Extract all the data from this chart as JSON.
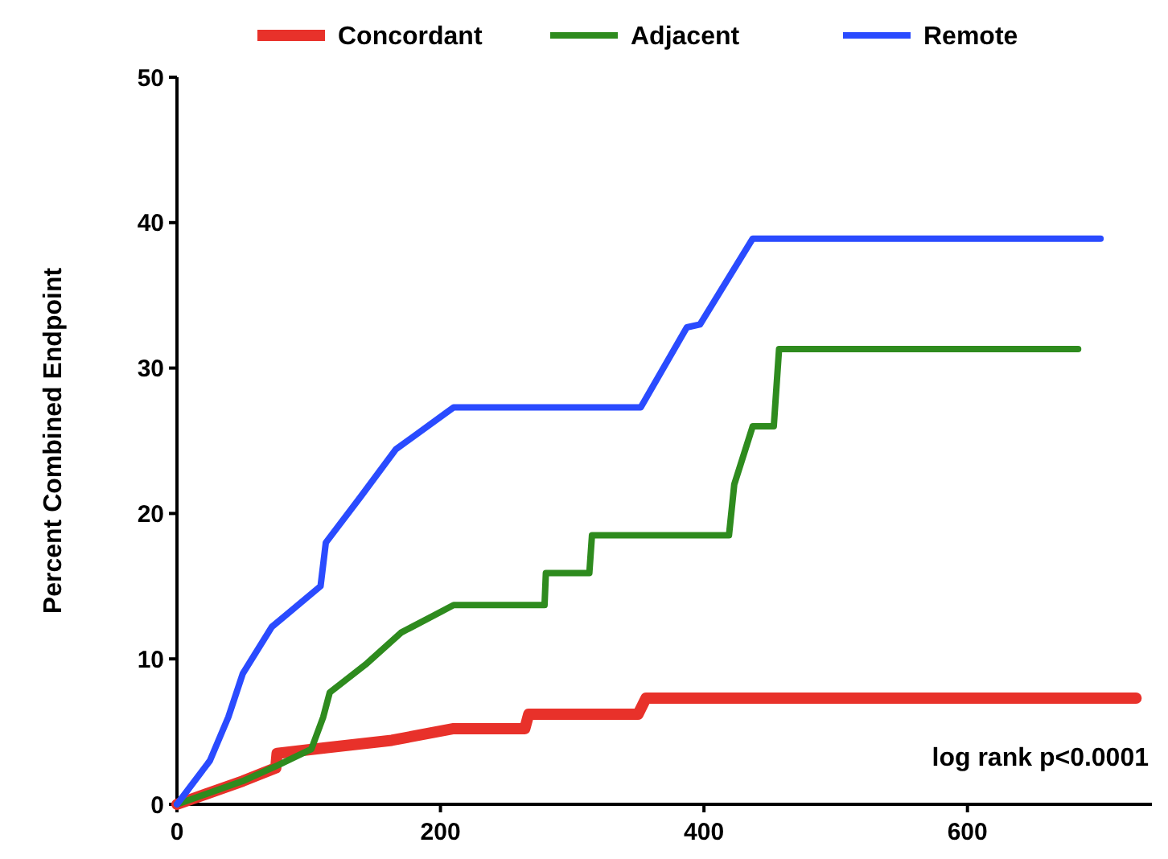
{
  "chart_data": {
    "type": "line",
    "ylabel": "Percent Combined Endpoint",
    "xlim": [
      0,
      740
    ],
    "xticks": [
      0,
      200,
      400,
      600
    ],
    "ylim": [
      0,
      50
    ],
    "yticks": [
      0,
      10,
      20,
      30,
      40,
      50
    ],
    "grid": false,
    "legend": "top",
    "marker": "none",
    "line_style": "solid",
    "annotations": [
      "log rank p<0.0001"
    ],
    "series": [
      {
        "name": "Concordant",
        "color": "#e8312a",
        "x": [
          0,
          50,
          75,
          76,
          114,
          163,
          210,
          264,
          267,
          350,
          356,
          728
        ],
        "values": [
          0,
          1.6,
          2.5,
          3.5,
          3.9,
          4.4,
          5.2,
          5.2,
          6.2,
          6.2,
          7.3,
          7.3
        ]
      },
      {
        "name": "Adjacent",
        "color": "#2e8b1e",
        "x": [
          0,
          50,
          77,
          102,
          111,
          116,
          143,
          170,
          210,
          279,
          280,
          313,
          315,
          419,
          423,
          437,
          453,
          457,
          684
        ],
        "values": [
          0,
          1.6,
          2.7,
          3.8,
          6,
          7.7,
          9.6,
          11.8,
          13.7,
          13.7,
          15.9,
          15.9,
          18.5,
          18.5,
          22,
          26,
          26,
          31.3,
          31.3
        ]
      },
      {
        "name": "Remote",
        "color": "#2a4bff",
        "x": [
          0,
          25,
          39,
          50,
          72,
          109,
          113,
          139,
          166,
          210,
          352,
          387,
          397,
          437,
          701
        ],
        "values": [
          0,
          3,
          6,
          9,
          12.2,
          15,
          18,
          21.1,
          24.4,
          27.3,
          27.3,
          32.8,
          33,
          38.9,
          38.9
        ]
      }
    ]
  }
}
